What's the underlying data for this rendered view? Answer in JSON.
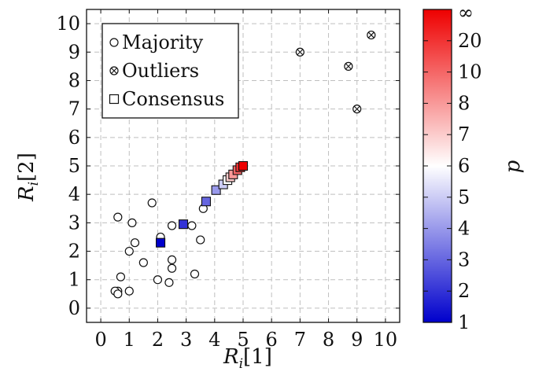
{
  "chart_data": {
    "type": "scatter",
    "xlabel": "R_i[1]",
    "ylabel": "R_i[2]",
    "xlim": [
      -0.5,
      10.5
    ],
    "ylim": [
      -0.5,
      10.5
    ],
    "xticks": [
      "0",
      "1",
      "2",
      "3",
      "4",
      "5",
      "6",
      "7",
      "8",
      "9",
      "10"
    ],
    "yticks": [
      "0",
      "1",
      "2",
      "3",
      "4",
      "5",
      "6",
      "7",
      "8",
      "9",
      "10"
    ],
    "grid": true,
    "legend_placement": "top-left",
    "legend": [
      {
        "name": "Majority",
        "marker": "circle"
      },
      {
        "name": "Outliers",
        "marker": "circle-x"
      },
      {
        "name": "Consensus",
        "marker": "square"
      }
    ],
    "series": [
      {
        "name": "Majority",
        "marker": "circle",
        "points": [
          [
            0.6,
            3.2
          ],
          [
            1.1,
            3.0
          ],
          [
            1.8,
            3.7
          ],
          [
            1.2,
            2.3
          ],
          [
            1.0,
            2.0
          ],
          [
            1.5,
            1.6
          ],
          [
            0.7,
            1.1
          ],
          [
            0.6,
            0.6
          ],
          [
            0.5,
            0.6
          ],
          [
            0.6,
            0.5
          ],
          [
            1.0,
            0.6
          ],
          [
            2.0,
            1.0
          ],
          [
            2.4,
            0.9
          ],
          [
            2.5,
            1.7
          ],
          [
            2.5,
            1.4
          ],
          [
            2.1,
            2.5
          ],
          [
            2.5,
            2.9
          ],
          [
            3.2,
            2.9
          ],
          [
            3.5,
            2.4
          ],
          [
            3.3,
            1.2
          ],
          [
            3.6,
            3.5
          ]
        ]
      },
      {
        "name": "Outliers",
        "marker": "circle-x",
        "points": [
          [
            7.0,
            9.0
          ],
          [
            8.7,
            8.5
          ],
          [
            9.5,
            9.6
          ],
          [
            9.0,
            7.0
          ]
        ]
      },
      {
        "name": "Consensus",
        "marker": "square",
        "points": [
          {
            "x": 2.1,
            "y": 2.3,
            "p": "1"
          },
          {
            "x": 2.9,
            "y": 2.95,
            "p": "2"
          },
          {
            "x": 3.7,
            "y": 3.75,
            "p": "3"
          },
          {
            "x": 4.05,
            "y": 4.15,
            "p": "4"
          },
          {
            "x": 4.3,
            "y": 4.35,
            "p": "5"
          },
          {
            "x": 4.45,
            "y": 4.5,
            "p": "6"
          },
          {
            "x": 4.55,
            "y": 4.6,
            "p": "7"
          },
          {
            "x": 4.65,
            "y": 4.7,
            "p": "8"
          },
          {
            "x": 4.8,
            "y": 4.85,
            "p": "10"
          },
          {
            "x": 4.9,
            "y": 4.95,
            "p": "20"
          },
          {
            "x": 5.0,
            "y": 5.0,
            "p": "∞"
          }
        ]
      }
    ],
    "colorbar": {
      "label": "p",
      "tick_labels": [
        "1",
        "2",
        "3",
        "4",
        "5",
        "6",
        "7",
        "8",
        "10",
        "20",
        "∞"
      ],
      "colors": [
        "#0000cc",
        "#ffffff",
        "#ee0000"
      ]
    }
  }
}
